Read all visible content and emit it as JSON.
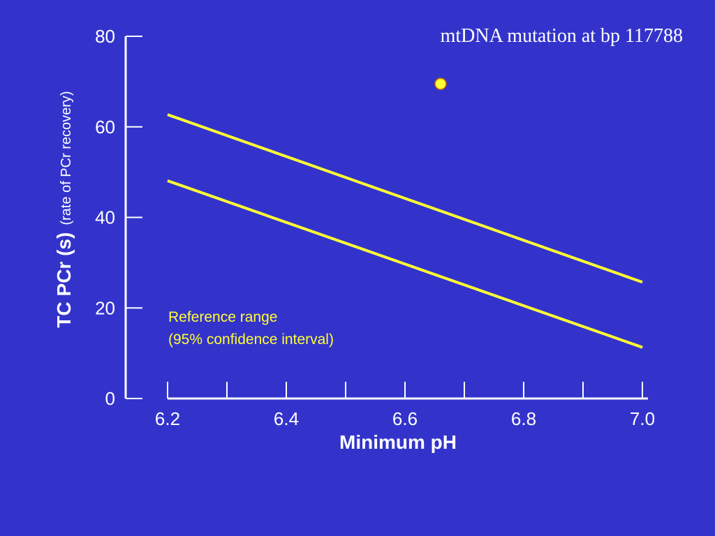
{
  "colors": {
    "background": "#3333cc",
    "axis": "#ffffff",
    "series": "#ffff33",
    "point_stroke": "#cc6600"
  },
  "chart_data": {
    "type": "line",
    "title": "",
    "xlabel": "Minimum pH",
    "ylabel": "TC PCr (s)",
    "ylabel_sub": "(rate of PCr recovery)",
    "xlim": [
      6.2,
      7.0
    ],
    "ylim": [
      0,
      80
    ],
    "x_ticks": [
      6.2,
      6.4,
      6.6,
      6.8,
      7.0
    ],
    "x_tick_labels": [
      "6.2",
      "6.4",
      "6.6",
      "6.8",
      "7.0"
    ],
    "x_minor_ticks": [
      6.3,
      6.5,
      6.7,
      6.9
    ],
    "y_ticks": [
      0,
      20,
      40,
      60,
      80
    ],
    "y_tick_labels": [
      "0",
      "20",
      "40",
      "60",
      "80"
    ],
    "grid": false,
    "series": [
      {
        "name": "upper",
        "x": [
          6.2,
          7.0
        ],
        "y": [
          62.7,
          25.7
        ]
      },
      {
        "name": "lower",
        "x": [
          6.2,
          7.0
        ],
        "y": [
          48.1,
          11.3
        ]
      }
    ],
    "points": [
      {
        "x": 6.66,
        "y": 69.5
      }
    ],
    "annotations": {
      "point_label": "mtDNA mutation at bp 117788",
      "reference_line1": "Reference range",
      "reference_line2": "(95% confidence interval)"
    }
  }
}
